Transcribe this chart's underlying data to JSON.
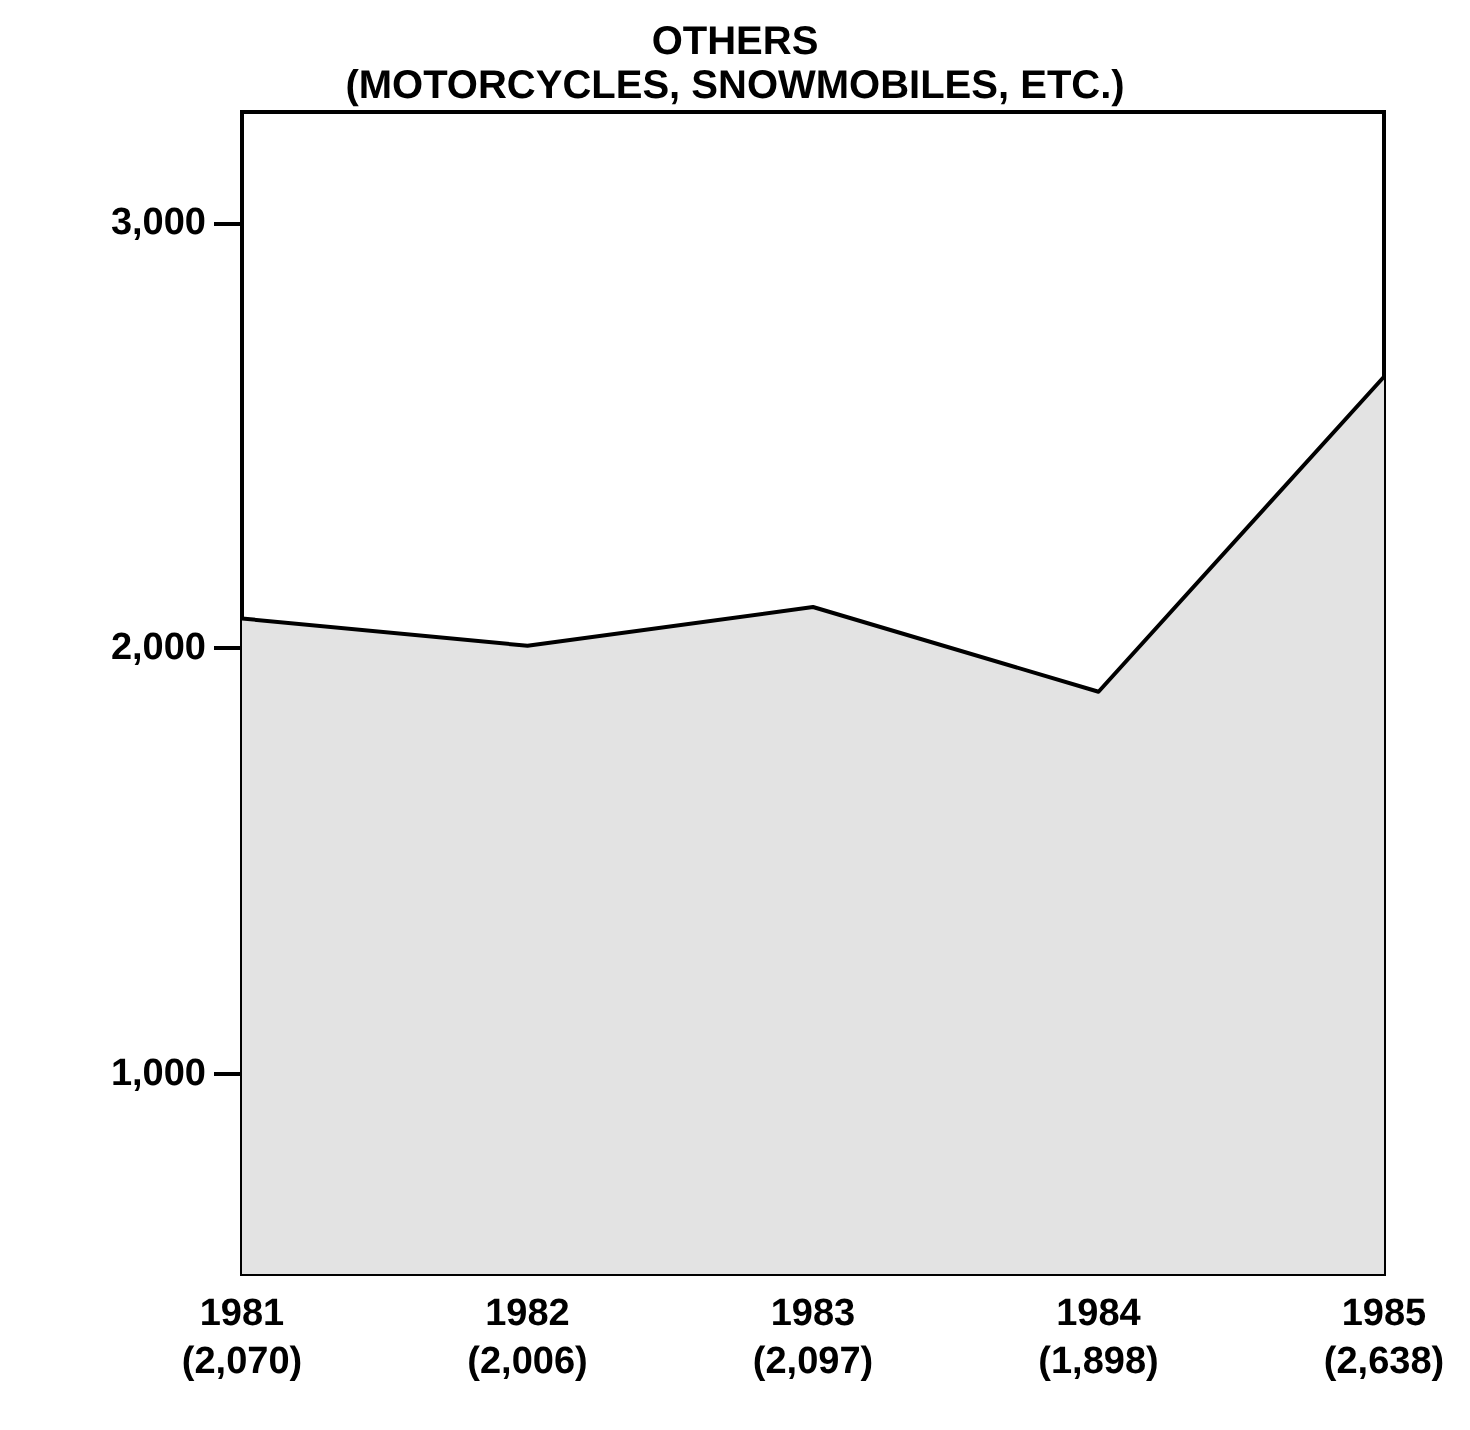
{
  "chart_data": {
    "type": "area",
    "title": "OTHERS",
    "subtitle": "(MOTORCYCLES, SNOWMOBILES, ETC.)",
    "categories": [
      "1981",
      "1982",
      "1983",
      "1984",
      "1985"
    ],
    "values": [
      2070,
      2006,
      2097,
      1898,
      2638
    ],
    "value_labels": [
      "(2,070)",
      "(2,006)",
      "(2,097)",
      "(1,898)",
      "(2,638)"
    ],
    "color": "#e3e3e3",
    "ylim": [
      530,
      3260
    ],
    "yticks": [
      {
        "value": 1000,
        "label": "1,000"
      },
      {
        "value": 2000,
        "label": "2,000"
      },
      {
        "value": 3000,
        "label": "3,000"
      }
    ],
    "grid": false
  }
}
